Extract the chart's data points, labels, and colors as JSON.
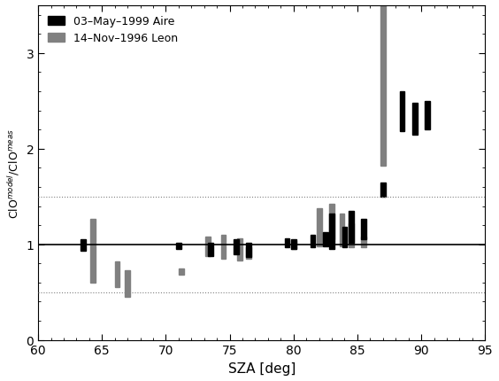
{
  "title": "",
  "xlabel": "SZA [deg]",
  "ylabel": "ClO$^{model}$/ClO$^{meas}$",
  "xlim": [
    60,
    95
  ],
  "ylim": [
    0,
    3.5
  ],
  "yticks": [
    0,
    1,
    2,
    3
  ],
  "xticks": [
    60,
    65,
    70,
    75,
    80,
    85,
    90,
    95
  ],
  "hline_solid": 1.0,
  "hline_dotted": [
    0.5,
    1.5
  ],
  "legend_labels": [
    "03–May–1999 Aire",
    "14–Nov–1996 Leon"
  ],
  "legend_colors": [
    "black",
    "gray"
  ],
  "bar_width": 0.4,
  "black_bars": [
    {
      "x": 63.5,
      "ymin": 0.93,
      "ymax": 1.05
    },
    {
      "x": 71.0,
      "ymin": 0.95,
      "ymax": 1.02
    },
    {
      "x": 73.5,
      "ymin": 0.88,
      "ymax": 1.02
    },
    {
      "x": 75.5,
      "ymin": 0.9,
      "ymax": 1.05
    },
    {
      "x": 76.5,
      "ymin": 0.87,
      "ymax": 1.02
    },
    {
      "x": 79.5,
      "ymin": 0.97,
      "ymax": 1.06
    },
    {
      "x": 80.0,
      "ymin": 0.95,
      "ymax": 1.05
    },
    {
      "x": 81.5,
      "ymin": 0.97,
      "ymax": 1.1
    },
    {
      "x": 82.5,
      "ymin": 0.98,
      "ymax": 1.13
    },
    {
      "x": 83.0,
      "ymin": 0.95,
      "ymax": 1.32
    },
    {
      "x": 84.0,
      "ymin": 0.97,
      "ymax": 1.18
    },
    {
      "x": 84.5,
      "ymin": 1.02,
      "ymax": 1.35
    },
    {
      "x": 85.5,
      "ymin": 1.05,
      "ymax": 1.27
    },
    {
      "x": 87.0,
      "ymin": 1.5,
      "ymax": 1.65
    },
    {
      "x": 88.5,
      "ymin": 2.18,
      "ymax": 2.6
    },
    {
      "x": 89.5,
      "ymin": 2.15,
      "ymax": 2.48
    },
    {
      "x": 90.5,
      "ymin": 2.2,
      "ymax": 2.5
    }
  ],
  "gray_bars": [
    {
      "x": 64.3,
      "ymin": 0.6,
      "ymax": 1.27
    },
    {
      "x": 66.2,
      "ymin": 0.55,
      "ymax": 0.82
    },
    {
      "x": 67.0,
      "ymin": 0.45,
      "ymax": 0.73
    },
    {
      "x": 71.2,
      "ymin": 0.68,
      "ymax": 0.75
    },
    {
      "x": 73.3,
      "ymin": 0.88,
      "ymax": 1.08
    },
    {
      "x": 74.5,
      "ymin": 0.85,
      "ymax": 1.1
    },
    {
      "x": 75.8,
      "ymin": 0.83,
      "ymax": 1.06
    },
    {
      "x": 76.5,
      "ymin": 0.85,
      "ymax": 0.97
    },
    {
      "x": 80.0,
      "ymin": 0.95,
      "ymax": 1.03
    },
    {
      "x": 82.0,
      "ymin": 0.98,
      "ymax": 1.38
    },
    {
      "x": 83.0,
      "ymin": 1.05,
      "ymax": 1.42
    },
    {
      "x": 83.8,
      "ymin": 0.98,
      "ymax": 1.32
    },
    {
      "x": 84.5,
      "ymin": 0.97,
      "ymax": 1.22
    },
    {
      "x": 85.5,
      "ymin": 0.97,
      "ymax": 1.08
    },
    {
      "x": 87.0,
      "ymin": 1.82,
      "ymax": 3.52
    }
  ]
}
